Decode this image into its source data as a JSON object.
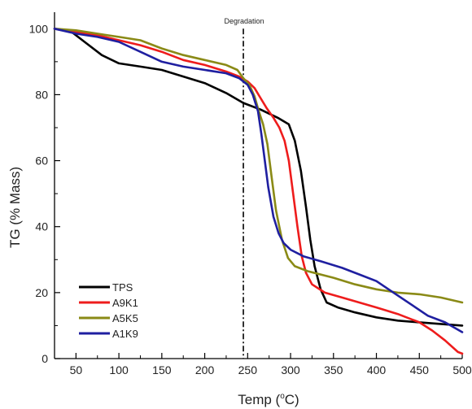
{
  "chart_data": {
    "type": "line",
    "xlabel_base": "Temp (",
    "xlabel_sup": "o",
    "xlabel_unit": "C)",
    "ylabel": "TG (% Mass)",
    "xlim": [
      25,
      500
    ],
    "ylim": [
      0,
      105
    ],
    "x_ticks": [
      50,
      100,
      150,
      200,
      250,
      300,
      350,
      400,
      450,
      500
    ],
    "y_ticks": [
      0,
      20,
      40,
      60,
      80,
      100
    ],
    "grid": false,
    "legend_position": "bottom-left",
    "annotation": {
      "text": "Degradation",
      "x": 245
    },
    "series": [
      {
        "name": "TPS",
        "color": "#000000",
        "points": [
          [
            25,
            100
          ],
          [
            45,
            99
          ],
          [
            60,
            96
          ],
          [
            80,
            92
          ],
          [
            100,
            89.5
          ],
          [
            125,
            88.5
          ],
          [
            150,
            87.5
          ],
          [
            175,
            85.5
          ],
          [
            200,
            83.5
          ],
          [
            225,
            80.5
          ],
          [
            245,
            77.5
          ],
          [
            265,
            75.5
          ],
          [
            285,
            73
          ],
          [
            298,
            71
          ],
          [
            305,
            66
          ],
          [
            312,
            57
          ],
          [
            318,
            46
          ],
          [
            323,
            36
          ],
          [
            328,
            28
          ],
          [
            335,
            21
          ],
          [
            342,
            17
          ],
          [
            355,
            15.5
          ],
          [
            375,
            14
          ],
          [
            400,
            12.5
          ],
          [
            425,
            11.5
          ],
          [
            450,
            11
          ],
          [
            475,
            10.5
          ],
          [
            500,
            10
          ]
        ]
      },
      {
        "name": "A9K1",
        "color": "#ee1c1c",
        "points": [
          [
            25,
            100
          ],
          [
            50,
            99
          ],
          [
            75,
            98
          ],
          [
            100,
            96.5
          ],
          [
            125,
            95
          ],
          [
            150,
            93
          ],
          [
            175,
            90.5
          ],
          [
            200,
            89
          ],
          [
            225,
            87
          ],
          [
            240,
            85.5
          ],
          [
            250,
            84
          ],
          [
            258,
            82
          ],
          [
            265,
            79
          ],
          [
            272,
            76
          ],
          [
            280,
            73
          ],
          [
            287,
            70
          ],
          [
            293,
            66
          ],
          [
            298,
            60
          ],
          [
            303,
            50
          ],
          [
            308,
            40
          ],
          [
            313,
            31
          ],
          [
            318,
            26
          ],
          [
            325,
            22.5
          ],
          [
            340,
            20
          ],
          [
            360,
            18.5
          ],
          [
            380,
            17
          ],
          [
            400,
            15.5
          ],
          [
            425,
            13.5
          ],
          [
            450,
            11
          ],
          [
            465,
            8.5
          ],
          [
            480,
            5.5
          ],
          [
            495,
            2
          ],
          [
            500,
            1.5
          ]
        ]
      },
      {
        "name": "A5K5",
        "color": "#8a8a16",
        "points": [
          [
            25,
            100
          ],
          [
            50,
            99.5
          ],
          [
            75,
            98.5
          ],
          [
            100,
            97.5
          ],
          [
            125,
            96.5
          ],
          [
            150,
            94
          ],
          [
            175,
            92
          ],
          [
            200,
            90.5
          ],
          [
            225,
            89
          ],
          [
            238,
            87.5
          ],
          [
            245,
            85
          ],
          [
            252,
            83
          ],
          [
            258,
            79.5
          ],
          [
            263,
            75
          ],
          [
            268,
            71
          ],
          [
            273,
            65
          ],
          [
            278,
            55
          ],
          [
            283,
            45
          ],
          [
            290,
            36
          ],
          [
            297,
            30.5
          ],
          [
            305,
            28
          ],
          [
            320,
            26.5
          ],
          [
            350,
            24.5
          ],
          [
            375,
            22.5
          ],
          [
            400,
            21
          ],
          [
            425,
            20
          ],
          [
            450,
            19.5
          ],
          [
            475,
            18.5
          ],
          [
            500,
            17
          ]
        ]
      },
      {
        "name": "A1K9",
        "color": "#1f1fa0",
        "points": [
          [
            25,
            100
          ],
          [
            50,
            98.5
          ],
          [
            75,
            97.5
          ],
          [
            100,
            96
          ],
          [
            125,
            93
          ],
          [
            150,
            90
          ],
          [
            175,
            88.5
          ],
          [
            200,
            87.5
          ],
          [
            225,
            86.5
          ],
          [
            240,
            85
          ],
          [
            250,
            83
          ],
          [
            256,
            80
          ],
          [
            262,
            75
          ],
          [
            266,
            68
          ],
          [
            270,
            60
          ],
          [
            274,
            52
          ],
          [
            280,
            43
          ],
          [
            286,
            38
          ],
          [
            292,
            35
          ],
          [
            300,
            33
          ],
          [
            315,
            31
          ],
          [
            335,
            29.5
          ],
          [
            360,
            27.5
          ],
          [
            380,
            25.5
          ],
          [
            400,
            23.5
          ],
          [
            420,
            20
          ],
          [
            440,
            16.5
          ],
          [
            460,
            13
          ],
          [
            480,
            11
          ],
          [
            500,
            8
          ]
        ]
      }
    ]
  }
}
